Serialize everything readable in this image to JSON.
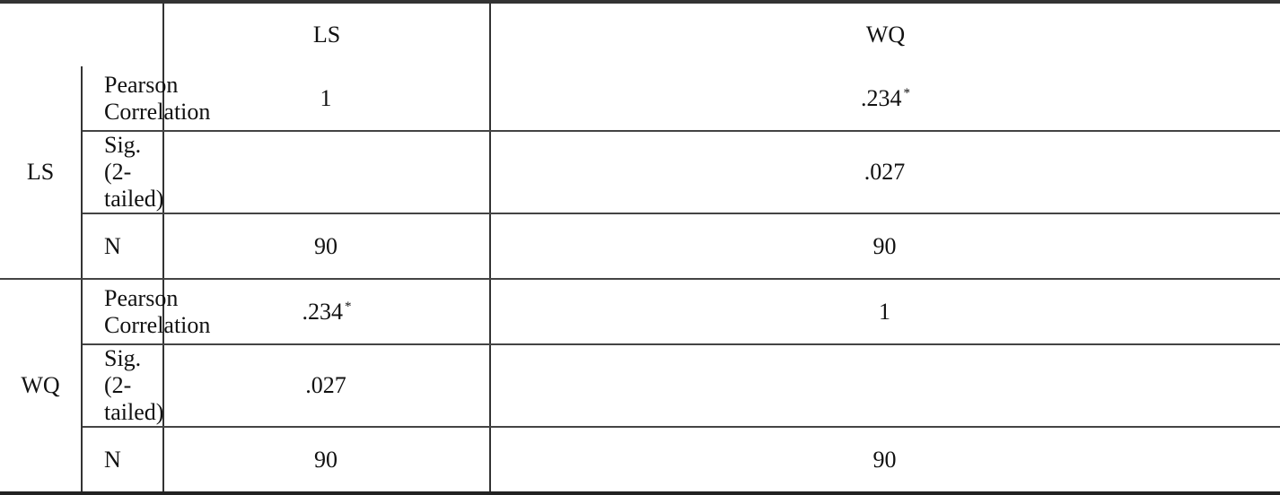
{
  "table": {
    "columns": [
      "",
      "",
      "LS",
      "WQ"
    ],
    "groups": [
      {
        "label": "LS",
        "rows": [
          {
            "stat": "Pearson Correlation",
            "ls": "1",
            "ls_mark": "",
            "wq": ".234",
            "wq_mark": "*"
          },
          {
            "stat": "Sig. (2-tailed)",
            "ls": "",
            "ls_mark": "",
            "wq": ".027",
            "wq_mark": ""
          },
          {
            "stat": "N",
            "ls": "90",
            "ls_mark": "",
            "wq": "90",
            "wq_mark": ""
          }
        ]
      },
      {
        "label": "WQ",
        "rows": [
          {
            "stat": "Pearson Correlation",
            "ls": ".234",
            "ls_mark": "*",
            "wq": "1",
            "wq_mark": ""
          },
          {
            "stat": "Sig. (2-tailed)",
            "ls": ".027",
            "ls_mark": "",
            "wq": "",
            "wq_mark": ""
          },
          {
            "stat": "N",
            "ls": "90",
            "ls_mark": "",
            "wq": "90",
            "wq_mark": ""
          }
        ]
      }
    ]
  }
}
